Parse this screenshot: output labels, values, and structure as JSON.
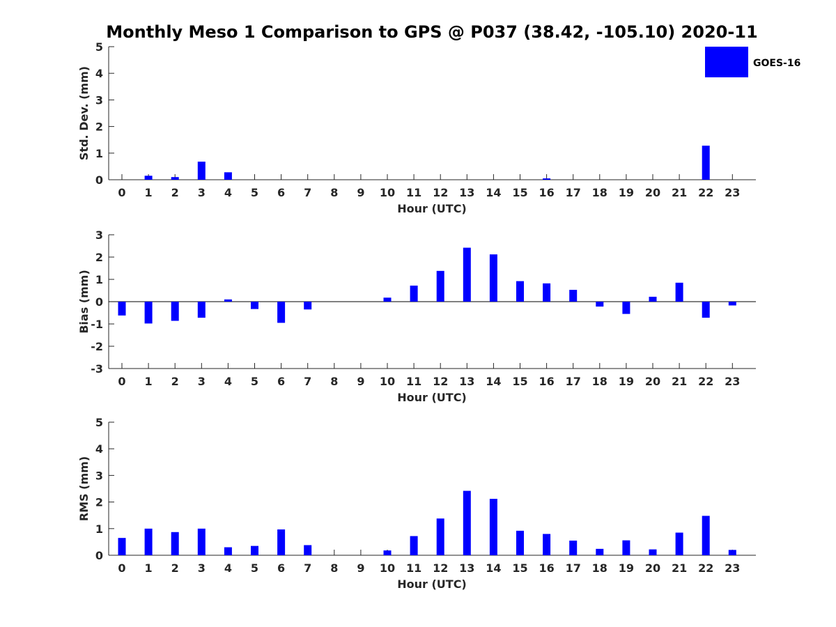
{
  "figure": {
    "title": "Monthly Meso 1 Comparison to GPS @ P037 (38.42, -105.10) 2020-11"
  },
  "colors": {
    "bar": "#0000ff",
    "axis": "#262626",
    "zero_line": "#000000"
  },
  "legend": {
    "label": "GOES-16",
    "placement": "top-right"
  },
  "chart_data": [
    {
      "type": "bar",
      "xlabel": "Hour (UTC)",
      "ylabel": "Std. Dev. (mm)",
      "ylim": [
        0,
        5
      ],
      "yticks": [
        0,
        1,
        2,
        3,
        4,
        5
      ],
      "categories": [
        "0",
        "1",
        "2",
        "3",
        "4",
        "5",
        "6",
        "7",
        "8",
        "9",
        "10",
        "11",
        "12",
        "13",
        "14",
        "15",
        "16",
        "17",
        "18",
        "19",
        "20",
        "21",
        "22",
        "23"
      ],
      "series": [
        {
          "name": "GOES-16",
          "values": [
            0,
            0.15,
            0.1,
            0.68,
            0.28,
            0,
            0,
            0,
            0,
            0,
            0,
            0,
            0,
            0,
            0,
            0,
            0.05,
            0,
            0,
            0,
            0,
            0,
            1.28,
            0
          ]
        }
      ]
    },
    {
      "type": "bar",
      "xlabel": "Hour (UTC)",
      "ylabel": "Bias (mm)",
      "ylim": [
        -3,
        3
      ],
      "yticks": [
        -3,
        -2,
        -1,
        0,
        1,
        2,
        3
      ],
      "categories": [
        "0",
        "1",
        "2",
        "3",
        "4",
        "5",
        "6",
        "7",
        "8",
        "9",
        "10",
        "11",
        "12",
        "13",
        "14",
        "15",
        "16",
        "17",
        "18",
        "19",
        "20",
        "21",
        "22",
        "23"
      ],
      "series": [
        {
          "name": "GOES-16",
          "values": [
            -0.62,
            -0.98,
            -0.86,
            -0.72,
            0.1,
            -0.33,
            -0.95,
            -0.35,
            0,
            0,
            0.18,
            0.72,
            1.38,
            2.42,
            2.12,
            0.92,
            0.82,
            0.53,
            -0.22,
            -0.55,
            0.22,
            0.85,
            -0.72,
            -0.17
          ]
        }
      ]
    },
    {
      "type": "bar",
      "xlabel": "Hour (UTC)",
      "ylabel": "RMS (mm)",
      "ylim": [
        0,
        5
      ],
      "yticks": [
        0,
        1,
        2,
        3,
        4,
        5
      ],
      "categories": [
        "0",
        "1",
        "2",
        "3",
        "4",
        "5",
        "6",
        "7",
        "8",
        "9",
        "10",
        "11",
        "12",
        "13",
        "14",
        "15",
        "16",
        "17",
        "18",
        "19",
        "20",
        "21",
        "22",
        "23"
      ],
      "series": [
        {
          "name": "GOES-16",
          "values": [
            0.65,
            1.0,
            0.87,
            1.0,
            0.3,
            0.35,
            0.97,
            0.38,
            0,
            0,
            0.18,
            0.72,
            1.38,
            2.42,
            2.12,
            0.92,
            0.8,
            0.55,
            0.24,
            0.56,
            0.22,
            0.85,
            1.48,
            0.2
          ]
        }
      ]
    }
  ]
}
